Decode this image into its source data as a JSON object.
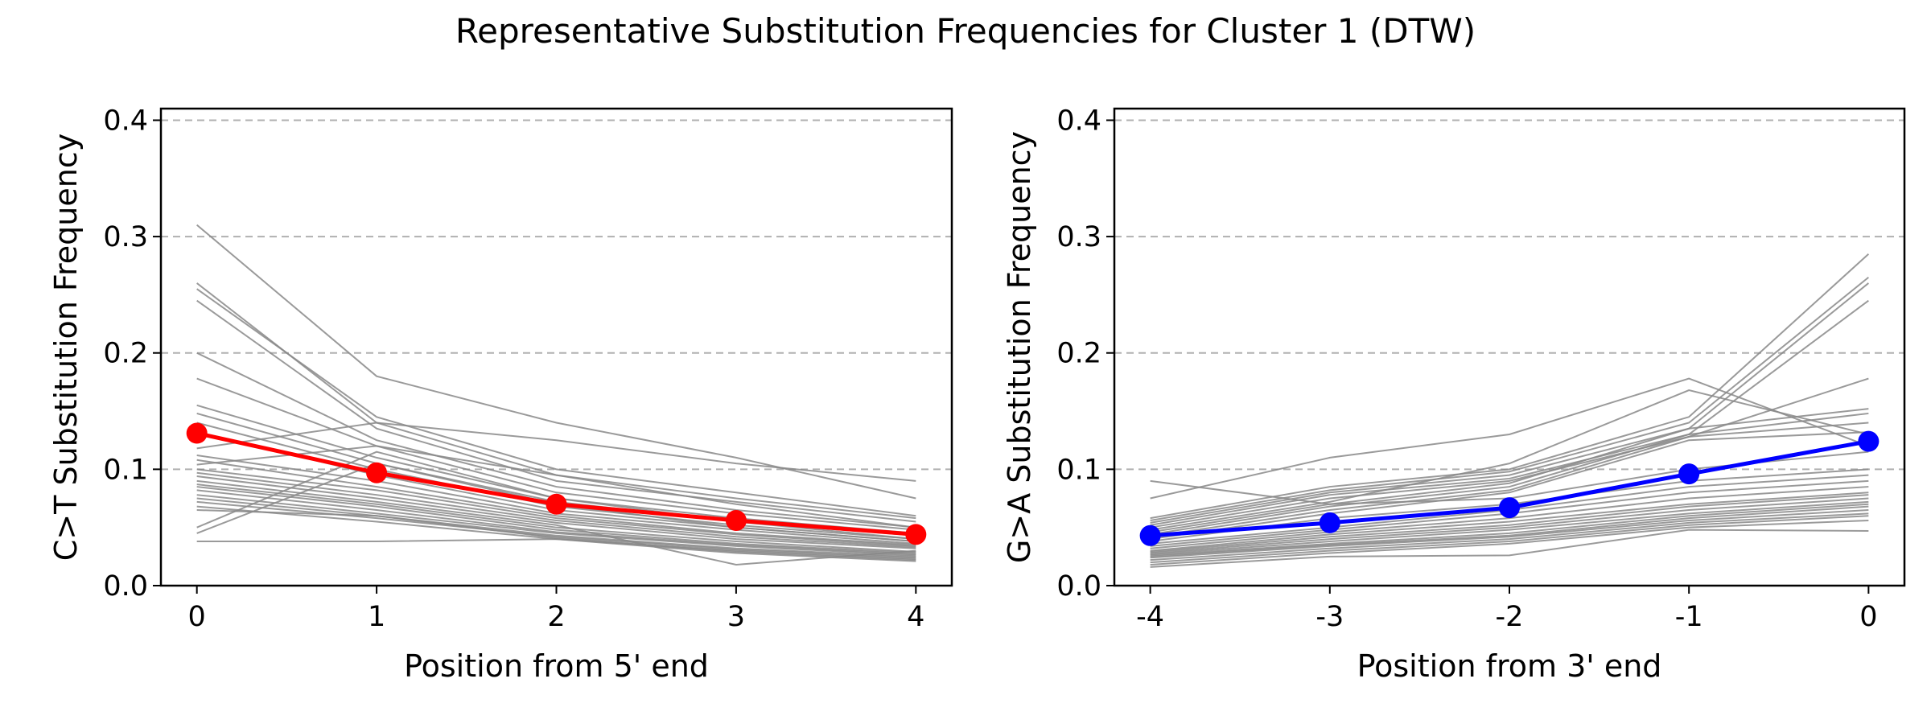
{
  "figure": {
    "title": "Representative Substitution Frequencies for Cluster 1 (DTW)"
  },
  "chart_data": [
    {
      "type": "line",
      "xlabel": "Position from 5' end",
      "ylabel": "C>T Substitution Frequency",
      "x": [
        0,
        1,
        2,
        3,
        4
      ],
      "x_tick_labels": [
        "0",
        "1",
        "2",
        "3",
        "4"
      ],
      "y_ticks": [
        0.0,
        0.1,
        0.2,
        0.3,
        0.4
      ],
      "y_tick_labels": [
        "0.0",
        "0.1",
        "0.2",
        "0.3",
        "0.4"
      ],
      "xlim": [
        -0.2,
        4.2
      ],
      "ylim": [
        0.0,
        0.41
      ],
      "grid": "horizontal dashed",
      "representative": {
        "color": "#ff0000",
        "values": [
          0.131,
          0.097,
          0.07,
          0.056,
          0.044
        ]
      },
      "background_color": "#888888",
      "background_series": [
        [
          0.31,
          0.18,
          0.14,
          0.11,
          0.075
        ],
        [
          0.26,
          0.14,
          0.095,
          0.075,
          0.058
        ],
        [
          0.255,
          0.145,
          0.1,
          0.08,
          0.06
        ],
        [
          0.245,
          0.135,
          0.09,
          0.072,
          0.055
        ],
        [
          0.2,
          0.125,
          0.085,
          0.065,
          0.05
        ],
        [
          0.178,
          0.12,
          0.08,
          0.062,
          0.048
        ],
        [
          0.155,
          0.11,
          0.075,
          0.058,
          0.045
        ],
        [
          0.148,
          0.105,
          0.072,
          0.055,
          0.043
        ],
        [
          0.14,
          0.1,
          0.068,
          0.052,
          0.04
        ],
        [
          0.132,
          0.095,
          0.065,
          0.05,
          0.038
        ],
        [
          0.118,
          0.14,
          0.125,
          0.105,
          0.09
        ],
        [
          0.112,
          0.09,
          0.062,
          0.048,
          0.036
        ],
        [
          0.108,
          0.085,
          0.06,
          0.045,
          0.035
        ],
        [
          0.104,
          0.12,
          0.095,
          0.07,
          0.05
        ],
        [
          0.1,
          0.082,
          0.058,
          0.044,
          0.034
        ],
        [
          0.097,
          0.078,
          0.056,
          0.042,
          0.033
        ],
        [
          0.094,
          0.075,
          0.054,
          0.04,
          0.032
        ],
        [
          0.09,
          0.072,
          0.052,
          0.018,
          0.03
        ],
        [
          0.087,
          0.07,
          0.05,
          0.038,
          0.029
        ],
        [
          0.085,
          0.068,
          0.048,
          0.036,
          0.028
        ],
        [
          0.082,
          0.065,
          0.046,
          0.035,
          0.027
        ],
        [
          0.078,
          0.062,
          0.045,
          0.034,
          0.026
        ],
        [
          0.075,
          0.06,
          0.043,
          0.032,
          0.025
        ],
        [
          0.072,
          0.058,
          0.042,
          0.031,
          0.024
        ],
        [
          0.068,
          0.055,
          0.04,
          0.03,
          0.023
        ],
        [
          0.065,
          0.06,
          0.041,
          0.029,
          0.022
        ],
        [
          0.05,
          0.115,
          0.075,
          0.055,
          0.04
        ],
        [
          0.045,
          0.105,
          0.07,
          0.05,
          0.038
        ],
        [
          0.038,
          0.038,
          0.04,
          0.028,
          0.021
        ]
      ]
    },
    {
      "type": "line",
      "xlabel": "Position from 3' end",
      "ylabel": "G>A Substitution Frequency",
      "x": [
        -4,
        -3,
        -2,
        -1,
        0
      ],
      "x_tick_labels": [
        "-4",
        "-3",
        "-2",
        "-1",
        "0"
      ],
      "y_ticks": [
        0.0,
        0.1,
        0.2,
        0.3,
        0.4
      ],
      "y_tick_labels": [
        "0.0",
        "0.1",
        "0.2",
        "0.3",
        "0.4"
      ],
      "xlim": [
        -4.2,
        0.2
      ],
      "ylim": [
        0.0,
        0.41
      ],
      "grid": "horizontal dashed",
      "representative": {
        "color": "#0000ff",
        "values": [
          0.043,
          0.054,
          0.067,
          0.096,
          0.124
        ]
      },
      "background_color": "#888888",
      "background_series": [
        [
          0.075,
          0.11,
          0.13,
          0.178,
          0.12
        ],
        [
          0.058,
          0.085,
          0.1,
          0.145,
          0.285
        ],
        [
          0.056,
          0.082,
          0.098,
          0.14,
          0.265
        ],
        [
          0.054,
          0.08,
          0.095,
          0.135,
          0.26
        ],
        [
          0.052,
          0.078,
          0.092,
          0.13,
          0.245
        ],
        [
          0.05,
          0.075,
          0.09,
          0.128,
          0.178
        ],
        [
          0.048,
          0.072,
          0.105,
          0.168,
          0.13
        ],
        [
          0.046,
          0.07,
          0.088,
          0.135,
          0.152
        ],
        [
          0.044,
          0.068,
          0.085,
          0.13,
          0.148
        ],
        [
          0.042,
          0.065,
          0.082,
          0.128,
          0.14
        ],
        [
          0.04,
          0.062,
          0.08,
          0.125,
          0.132
        ],
        [
          0.09,
          0.07,
          0.075,
          0.1,
          0.115
        ],
        [
          0.038,
          0.058,
          0.07,
          0.09,
          0.1
        ],
        [
          0.036,
          0.05,
          0.065,
          0.085,
          0.095
        ],
        [
          0.034,
          0.048,
          0.062,
          0.08,
          0.09
        ],
        [
          0.032,
          0.046,
          0.058,
          0.075,
          0.085
        ],
        [
          0.03,
          0.044,
          0.055,
          0.07,
          0.08
        ],
        [
          0.029,
          0.042,
          0.052,
          0.068,
          0.078
        ],
        [
          0.028,
          0.04,
          0.05,
          0.065,
          0.075
        ],
        [
          0.027,
          0.038,
          0.048,
          0.062,
          0.072
        ],
        [
          0.026,
          0.036,
          0.045,
          0.06,
          0.07
        ],
        [
          0.025,
          0.035,
          0.043,
          0.058,
          0.068
        ],
        [
          0.024,
          0.034,
          0.042,
          0.056,
          0.065
        ],
        [
          0.022,
          0.032,
          0.04,
          0.054,
          0.062
        ],
        [
          0.02,
          0.03,
          0.038,
          0.052,
          0.06
        ],
        [
          0.018,
          0.028,
          0.036,
          0.05,
          0.056
        ],
        [
          0.016,
          0.025,
          0.026,
          0.048,
          0.047
        ]
      ]
    }
  ]
}
